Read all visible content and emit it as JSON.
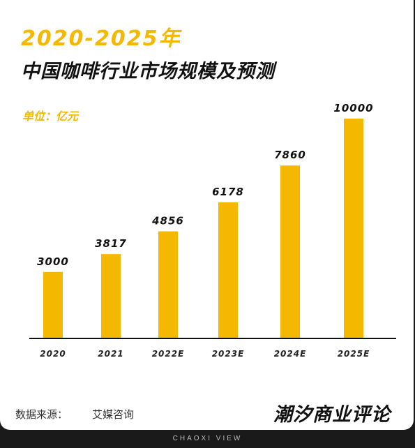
{
  "header": {
    "year_range": "2020-2025年",
    "title": "中国咖啡行业市场规模及预测",
    "unit": "单位：亿元"
  },
  "chart_data": {
    "type": "bar",
    "title": "2020-2025年 中国咖啡行业市场规模及预测",
    "ylabel": "单位：亿元",
    "xlabel": "",
    "categories": [
      "2020",
      "2021",
      "2022E",
      "2023E",
      "2024E",
      "2025E"
    ],
    "values": [
      3000,
      3817,
      4856,
      6178,
      7860,
      10000
    ],
    "ylim": [
      0,
      10000
    ],
    "grid": false,
    "legend": "none",
    "bar_color": "#f5b800"
  },
  "footer": {
    "source_label": "数据来源：",
    "source_value": "艾媒咨询",
    "brand": "潮汐商业评论",
    "brand_en": "CHAOXI VIEW"
  },
  "colors": {
    "accent": "#f5b800",
    "text": "#111111",
    "background": "#ffffff"
  }
}
